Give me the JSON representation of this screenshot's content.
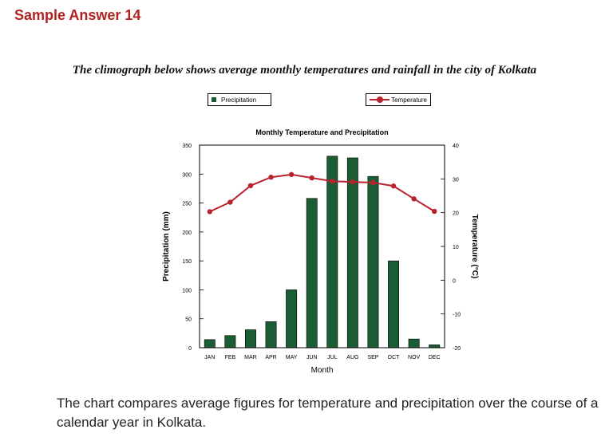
{
  "heading": "Sample Answer 14",
  "intro": "The climograph below shows average monthly temperatures and rainfall in the city of Kolkata",
  "footer": "The chart compares average figures for temperature and precipitation over the course of a calendar year in Kolkata.",
  "colors": {
    "heading": "#b22222",
    "bar": "#1a5c34",
    "line": "#b8232e"
  },
  "chart_data": {
    "type": "bar",
    "title": "Monthly Temperature and Precipitation",
    "xlabel": "Month",
    "ylabel": "Precipitation (mm)",
    "y2label": "Temperature (°C)",
    "categories": [
      "JAN",
      "FEB",
      "MAR",
      "APR",
      "MAY",
      "JUN",
      "JUL",
      "AUG",
      "SEP",
      "OCT",
      "NOV",
      "DEC"
    ],
    "ylim": [
      0,
      350
    ],
    "yticks": [
      0,
      50,
      100,
      150,
      200,
      250,
      300,
      350
    ],
    "y2lim": [
      -20,
      40
    ],
    "y2ticks": [
      -20,
      -10,
      0,
      10,
      20,
      30,
      40
    ],
    "legend_position": "top",
    "series": [
      {
        "name": "Precipitation",
        "type": "bar",
        "axis": "left",
        "values": [
          14,
          21,
          31,
          45,
          100,
          258,
          331,
          328,
          296,
          150,
          15,
          5
        ]
      },
      {
        "name": "Temperature",
        "type": "line",
        "axis": "right",
        "values": [
          20.3,
          23.1,
          28.0,
          30.5,
          31.3,
          30.3,
          29.3,
          29.1,
          28.9,
          27.9,
          24.1,
          20.4
        ]
      }
    ]
  }
}
